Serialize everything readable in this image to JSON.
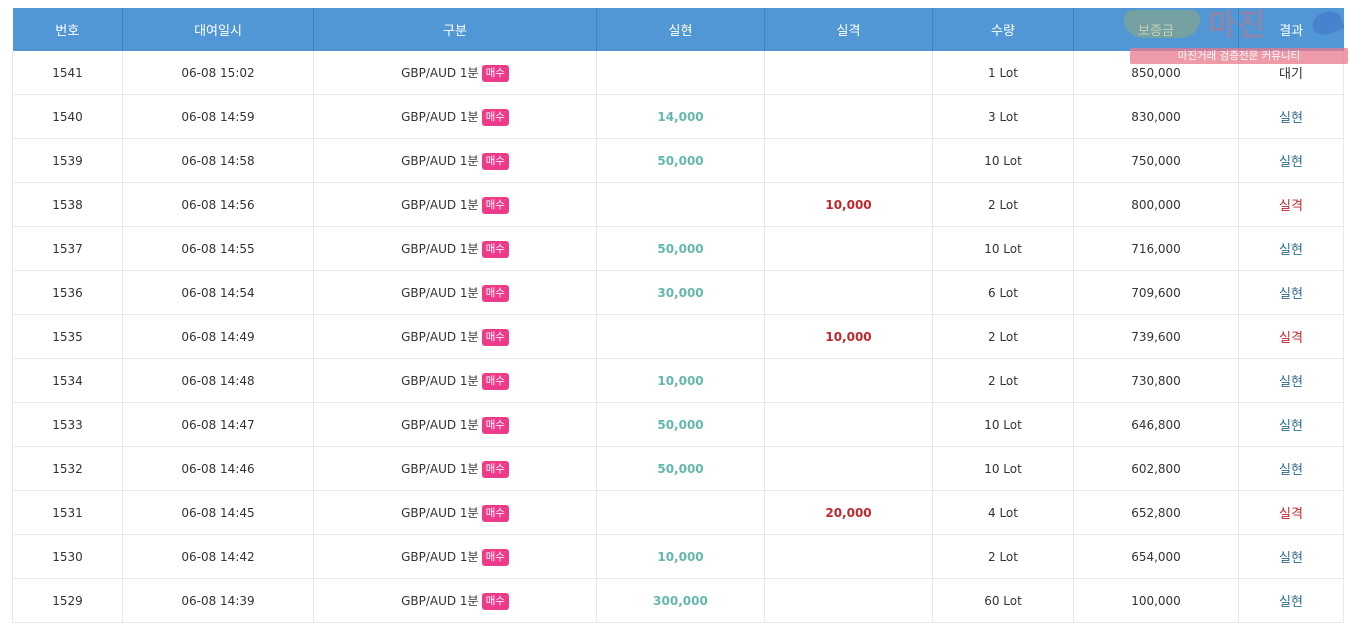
{
  "table": {
    "headers": [
      "번호",
      "대여일시",
      "구분",
      "실현",
      "실격",
      "수량",
      "보증금",
      "결과"
    ],
    "badge_label": "매수",
    "rows": [
      {
        "no": "1541",
        "datetime": "06-08 15:02",
        "pair": "GBP/AUD 1분",
        "profit": "",
        "loss": "",
        "qty": "1 Lot",
        "deposit": "850,000",
        "result": "대기",
        "result_type": "wait"
      },
      {
        "no": "1540",
        "datetime": "06-08 14:59",
        "pair": "GBP/AUD 1분",
        "profit": "14,000",
        "loss": "",
        "qty": "3 Lot",
        "deposit": "830,000",
        "result": "실현",
        "result_type": "realize"
      },
      {
        "no": "1539",
        "datetime": "06-08 14:58",
        "pair": "GBP/AUD 1분",
        "profit": "50,000",
        "loss": "",
        "qty": "10 Lot",
        "deposit": "750,000",
        "result": "실현",
        "result_type": "realize"
      },
      {
        "no": "1538",
        "datetime": "06-08 14:56",
        "pair": "GBP/AUD 1분",
        "profit": "",
        "loss": "10,000",
        "qty": "2 Lot",
        "deposit": "800,000",
        "result": "실격",
        "result_type": "loss"
      },
      {
        "no": "1537",
        "datetime": "06-08 14:55",
        "pair": "GBP/AUD 1분",
        "profit": "50,000",
        "loss": "",
        "qty": "10 Lot",
        "deposit": "716,000",
        "result": "실현",
        "result_type": "realize"
      },
      {
        "no": "1536",
        "datetime": "06-08 14:54",
        "pair": "GBP/AUD 1분",
        "profit": "30,000",
        "loss": "",
        "qty": "6 Lot",
        "deposit": "709,600",
        "result": "실현",
        "result_type": "realize"
      },
      {
        "no": "1535",
        "datetime": "06-08 14:49",
        "pair": "GBP/AUD 1분",
        "profit": "",
        "loss": "10,000",
        "qty": "2 Lot",
        "deposit": "739,600",
        "result": "실격",
        "result_type": "loss"
      },
      {
        "no": "1534",
        "datetime": "06-08 14:48",
        "pair": "GBP/AUD 1분",
        "profit": "10,000",
        "loss": "",
        "qty": "2 Lot",
        "deposit": "730,800",
        "result": "실현",
        "result_type": "realize"
      },
      {
        "no": "1533",
        "datetime": "06-08 14:47",
        "pair": "GBP/AUD 1분",
        "profit": "50,000",
        "loss": "",
        "qty": "10 Lot",
        "deposit": "646,800",
        "result": "실현",
        "result_type": "realize"
      },
      {
        "no": "1532",
        "datetime": "06-08 14:46",
        "pair": "GBP/AUD 1분",
        "profit": "50,000",
        "loss": "",
        "qty": "10 Lot",
        "deposit": "602,800",
        "result": "실현",
        "result_type": "realize"
      },
      {
        "no": "1531",
        "datetime": "06-08 14:45",
        "pair": "GBP/AUD 1분",
        "profit": "",
        "loss": "20,000",
        "qty": "4 Lot",
        "deposit": "652,800",
        "result": "실격",
        "result_type": "loss"
      },
      {
        "no": "1530",
        "datetime": "06-08 14:42",
        "pair": "GBP/AUD 1분",
        "profit": "10,000",
        "loss": "",
        "qty": "2 Lot",
        "deposit": "654,000",
        "result": "실현",
        "result_type": "realize"
      },
      {
        "no": "1529",
        "datetime": "06-08 14:39",
        "pair": "GBP/AUD 1분",
        "profit": "300,000",
        "loss": "",
        "qty": "60 Lot",
        "deposit": "100,000",
        "result": "실현",
        "result_type": "realize"
      }
    ]
  },
  "watermark": {
    "title": "마진",
    "subtitle": "마진거래 검증전문 커뮤니티"
  },
  "colors": {
    "header_bg": "#5197d5",
    "badge": "#ef3a8a",
    "profit": "#63b8ae",
    "loss": "#c2272d",
    "realize": "#2d6d8f"
  }
}
